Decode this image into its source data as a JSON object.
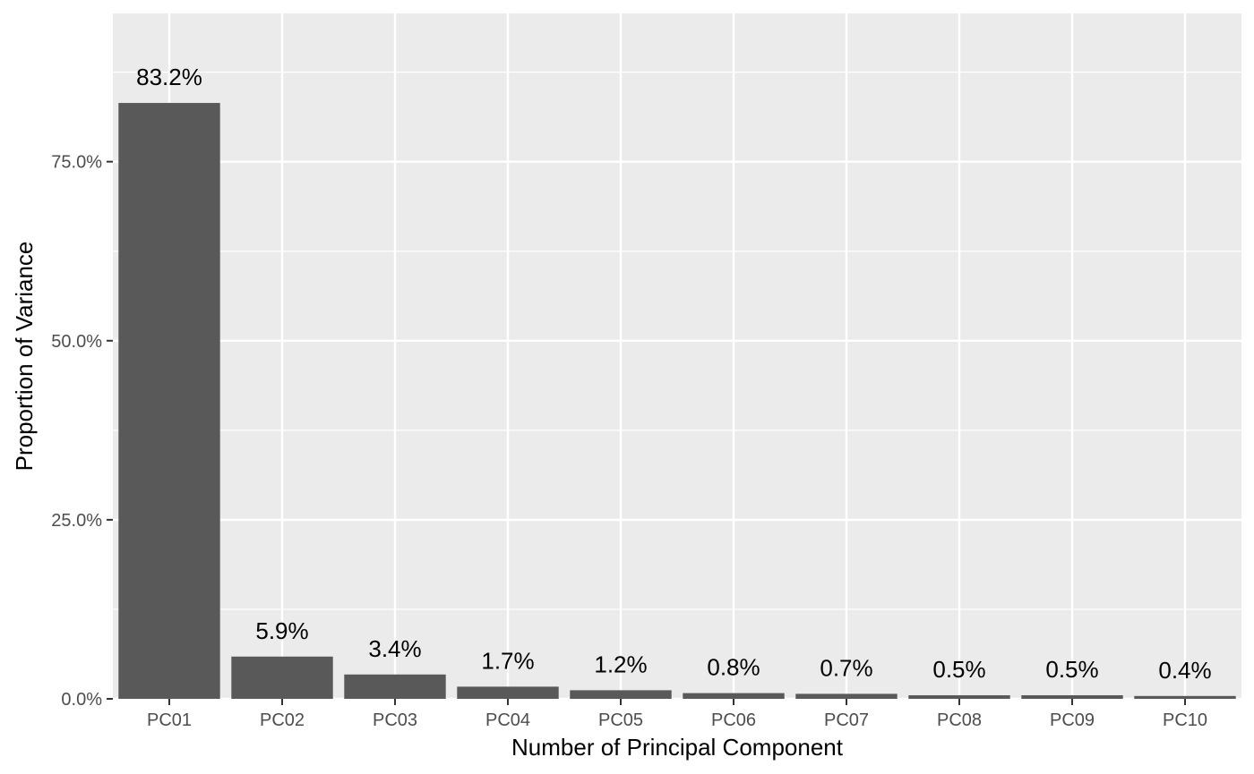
{
  "chart_data": {
    "type": "bar",
    "title": "",
    "xlabel": "Number of Principal Component",
    "ylabel": "Proportion of Variance",
    "categories": [
      "PC01",
      "PC02",
      "PC03",
      "PC04",
      "PC05",
      "PC06",
      "PC07",
      "PC08",
      "PC09",
      "PC10"
    ],
    "values": [
      0.832,
      0.059,
      0.034,
      0.017,
      0.012,
      0.008,
      0.007,
      0.005,
      0.005,
      0.004
    ],
    "data_labels": [
      "83.2%",
      "5.9%",
      "3.4%",
      "1.7%",
      "1.2%",
      "0.8%",
      "0.7%",
      "0.5%",
      "0.5%",
      "0.4%"
    ],
    "y_ticks": [
      0,
      0.25,
      0.5,
      0.75
    ],
    "y_tick_labels": [
      "0.0%",
      "25.0%",
      "50.0%",
      "75.0%"
    ],
    "ylim": [
      0,
      0.957
    ],
    "grid": true,
    "legend": "none",
    "colors": {
      "panel": "#ebebeb",
      "grid": "#ffffff",
      "bar": "#595959",
      "tick": "#333333"
    }
  }
}
